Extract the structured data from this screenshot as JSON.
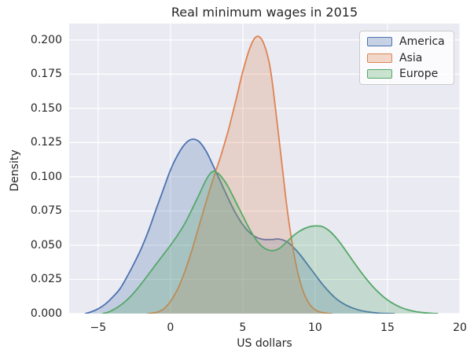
{
  "figure": {
    "background": "#ffffff",
    "axes_background": "#eaeaf2",
    "grid_color": "#ffffff",
    "text_color": "#262626",
    "legend_background": "rgba(255,255,255,0.8)",
    "legend_border_color": "#cccccc"
  },
  "chart_data": {
    "type": "area",
    "subtype": "kde-density",
    "title": "Real minimum wages in 2015",
    "xlabel": "US dollars",
    "ylabel": "Density",
    "xlim": [
      -7,
      20
    ],
    "ylim": [
      0,
      0.212
    ],
    "xticks": [
      -5,
      0,
      5,
      10,
      15,
      20
    ],
    "xtick_labels": [
      "−5",
      "0",
      "5",
      "10",
      "15",
      "20"
    ],
    "yticks": [
      0,
      0.025,
      0.05,
      0.075,
      0.1,
      0.125,
      0.15,
      0.175,
      0.2
    ],
    "ytick_labels": [
      "0.000",
      "0.025",
      "0.050",
      "0.075",
      "0.100",
      "0.125",
      "0.150",
      "0.175",
      "0.200"
    ],
    "grid": true,
    "legend_position": "upper right",
    "fill_opacity": 0.25,
    "line_width": 1.8,
    "series": [
      {
        "name": "America",
        "color": "#4c72b0",
        "peaks": [
          {
            "x": 1.5,
            "y": 0.1275
          },
          {
            "x": 7.3,
            "y": 0.0545
          }
        ],
        "points": [
          [
            -5.9,
            0
          ],
          [
            -5.5,
            0.0012
          ],
          [
            -5,
            0.0035
          ],
          [
            -4.5,
            0.007
          ],
          [
            -4,
            0.012
          ],
          [
            -3.5,
            0.018
          ],
          [
            -3,
            0.027
          ],
          [
            -2.5,
            0.037
          ],
          [
            -2,
            0.048
          ],
          [
            -1.5,
            0.061
          ],
          [
            -1,
            0.076
          ],
          [
            -0.5,
            0.0905
          ],
          [
            0,
            0.105
          ],
          [
            0.5,
            0.116
          ],
          [
            1,
            0.124
          ],
          [
            1.5,
            0.1275
          ],
          [
            2,
            0.1255
          ],
          [
            2.5,
            0.118
          ],
          [
            3,
            0.107
          ],
          [
            3.5,
            0.0955
          ],
          [
            4,
            0.084
          ],
          [
            4.5,
            0.0735
          ],
          [
            5,
            0.065
          ],
          [
            5.5,
            0.059
          ],
          [
            6,
            0.0555
          ],
          [
            6.5,
            0.0542
          ],
          [
            7,
            0.0542
          ],
          [
            7.5,
            0.0545
          ],
          [
            8,
            0.0528
          ],
          [
            8.5,
            0.0485
          ],
          [
            9,
            0.0425
          ],
          [
            9.5,
            0.0355
          ],
          [
            10,
            0.0285
          ],
          [
            10.5,
            0.0215
          ],
          [
            11,
            0.0155
          ],
          [
            11.5,
            0.0105
          ],
          [
            12,
            0.007
          ],
          [
            12.5,
            0.0045
          ],
          [
            13,
            0.0027
          ],
          [
            13.5,
            0.0015
          ],
          [
            14,
            0.0008
          ],
          [
            14.5,
            0.0003
          ],
          [
            15,
            0.0001
          ],
          [
            15.5,
            0
          ]
        ]
      },
      {
        "name": "Asia",
        "color": "#dd8452",
        "peaks": [
          {
            "x": 5.9,
            "y": 0.2022
          }
        ],
        "points": [
          [
            -1.6,
            0
          ],
          [
            -1.2,
            0.0005
          ],
          [
            -0.8,
            0.0015
          ],
          [
            -0.4,
            0.004
          ],
          [
            0,
            0.009
          ],
          [
            0.5,
            0.018
          ],
          [
            1,
            0.031
          ],
          [
            1.5,
            0.047
          ],
          [
            2,
            0.065
          ],
          [
            2.5,
            0.083
          ],
          [
            3,
            0.1
          ],
          [
            3.5,
            0.116
          ],
          [
            4,
            0.134
          ],
          [
            4.5,
            0.155
          ],
          [
            5,
            0.177
          ],
          [
            5.5,
            0.1945
          ],
          [
            5.9,
            0.2022
          ],
          [
            6.3,
            0.2005
          ],
          [
            6.7,
            0.189
          ],
          [
            7,
            0.172
          ],
          [
            7.5,
            0.128
          ],
          [
            8,
            0.082
          ],
          [
            8.4,
            0.052
          ],
          [
            8.8,
            0.03
          ],
          [
            9.2,
            0.0155
          ],
          [
            9.6,
            0.007
          ],
          [
            10,
            0.0028
          ],
          [
            10.4,
            0.001
          ],
          [
            10.8,
            0.0003
          ],
          [
            11.2,
            0
          ]
        ]
      },
      {
        "name": "Europe",
        "color": "#55a868",
        "peaks": [
          {
            "x": 2.9,
            "y": 0.1038
          },
          {
            "x": 10,
            "y": 0.0641
          }
        ],
        "points": [
          [
            -4.7,
            0
          ],
          [
            -4.2,
            0.0015
          ],
          [
            -3.6,
            0.005
          ],
          [
            -3,
            0.01
          ],
          [
            -2.5,
            0.0155
          ],
          [
            -2,
            0.022
          ],
          [
            -1.5,
            0.029
          ],
          [
            -1,
            0.036
          ],
          [
            -0.5,
            0.043
          ],
          [
            0,
            0.05
          ],
          [
            0.5,
            0.0575
          ],
          [
            1,
            0.066
          ],
          [
            1.5,
            0.0765
          ],
          [
            2,
            0.0875
          ],
          [
            2.5,
            0.0985
          ],
          [
            2.9,
            0.1038
          ],
          [
            3.3,
            0.1025
          ],
          [
            3.7,
            0.0975
          ],
          [
            4,
            0.0925
          ],
          [
            4.5,
            0.082
          ],
          [
            5,
            0.0715
          ],
          [
            5.5,
            0.0612
          ],
          [
            6,
            0.0528
          ],
          [
            6.5,
            0.0478
          ],
          [
            7,
            0.046
          ],
          [
            7.5,
            0.0475
          ],
          [
            8,
            0.052
          ],
          [
            8.5,
            0.057
          ],
          [
            9,
            0.0608
          ],
          [
            9.5,
            0.0632
          ],
          [
            10,
            0.0641
          ],
          [
            10.5,
            0.0636
          ],
          [
            11,
            0.0603
          ],
          [
            11.5,
            0.0548
          ],
          [
            12,
            0.0478
          ],
          [
            12.5,
            0.0402
          ],
          [
            13,
            0.0328
          ],
          [
            13.5,
            0.0258
          ],
          [
            14,
            0.0196
          ],
          [
            14.5,
            0.0143
          ],
          [
            15,
            0.01
          ],
          [
            15.5,
            0.0067
          ],
          [
            16,
            0.0042
          ],
          [
            16.5,
            0.0025
          ],
          [
            17,
            0.0014
          ],
          [
            17.5,
            0.0007
          ],
          [
            18,
            0.0003
          ],
          [
            18.5,
            0
          ]
        ]
      }
    ]
  }
}
